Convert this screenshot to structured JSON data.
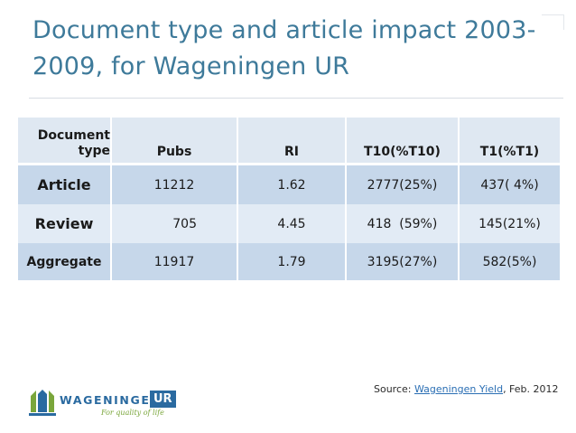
{
  "slide": {
    "title_line1": "Document type and article impact 2003-",
    "title_line2": "2009, for Wageningen UR"
  },
  "table": {
    "header": {
      "col0_line1": "Document",
      "col0_line2": "type",
      "col1": "Pubs",
      "col2": "RI",
      "col3": "T10(%T10)",
      "col4": "T1(%T1)"
    },
    "rows": [
      {
        "type": "Article",
        "pubs": "11212",
        "ri": "1.62",
        "t10": "2777(25%)",
        "t1": "437( 4%)"
      },
      {
        "type": "Review",
        "pubs": "705",
        "ri": "4.45",
        "t10": "418  (59%)",
        "t1": "145(21%)"
      },
      {
        "type": "Aggregate",
        "pubs": "11917",
        "ri": "1.79",
        "t10": "3195(27%)",
        "t1": "582(5%)"
      }
    ]
  },
  "source": {
    "prefix": "Source: ",
    "link_text": "Wageningen Yield",
    "suffix": ", Feb. 2012"
  },
  "logo": {
    "wordmark": "WAGENINGEN",
    "ur": "UR",
    "tagline": "For quality of life"
  },
  "colors": {
    "title": "#3e7a9a",
    "header_row": "#dfe8f2",
    "band_dark": "#c6d7ea",
    "band_light": "#e2ebf5",
    "logo_blue": "#2a6aa0",
    "logo_green": "#7aa63b"
  }
}
